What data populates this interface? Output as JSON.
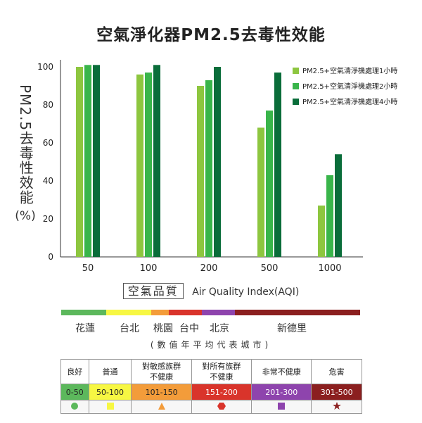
{
  "title": "空氣淨化器PM2.5去毒性效能",
  "colors": {
    "series": [
      "#8dc63f",
      "#39b54a",
      "#0a6d3a"
    ]
  },
  "chart_data": {
    "type": "bar",
    "categories": [
      "50",
      "100",
      "200",
      "500",
      "1000"
    ],
    "series": [
      {
        "name": "PM2.5+空氣清淨機處理1小時",
        "values": [
          100,
          96,
          90,
          68,
          27
        ]
      },
      {
        "name": "PM2.5+空氣清淨機處理2小時",
        "values": [
          101,
          97,
          93,
          77,
          43
        ]
      },
      {
        "name": "PM2.5+空氣清淨機處理4小時",
        "values": [
          101,
          101,
          100,
          97,
          54
        ]
      }
    ],
    "ylim": [
      0,
      100
    ],
    "yticks": [
      "0",
      "20",
      "40",
      "60",
      "80",
      "100"
    ],
    "ylabel_lines": [
      "PM2.5",
      "去",
      "毒",
      "性",
      "效",
      "能"
    ],
    "ylabel_unit": "(%)",
    "xlabel_box": "空氣品質",
    "xlabel": "Air Quality Index(AQI)",
    "legend_position": "top-right"
  },
  "aqi_scale": {
    "segments": [
      {
        "color": "#5cb85c",
        "share": 0.15
      },
      {
        "color": "#f7f743",
        "share": 0.15
      },
      {
        "color": "#f39c3a",
        "share": 0.06
      },
      {
        "color": "#d9342b",
        "share": 0.11
      },
      {
        "color": "#8e44ad",
        "share": 0.11
      },
      {
        "color": "#8b1f1f",
        "share": 0.42
      }
    ],
    "cities": [
      "花蓮",
      "台北",
      "桃園",
      "台中",
      "北京",
      "新德里"
    ],
    "note": "(數值年平均代表城市)"
  },
  "legend_table": {
    "levels": [
      {
        "label": "良好",
        "range": "0-50",
        "color": "#5cb85c",
        "icon": "circle-icon",
        "text_color": "#222"
      },
      {
        "label": "普通",
        "range": "50-100",
        "color": "#f7f743",
        "icon": "square-icon",
        "text_color": "#222"
      },
      {
        "label": "對敏感族群\n不健康",
        "range": "101-150",
        "color": "#f39c3a",
        "icon": "triangle-icon",
        "text_color": "#222"
      },
      {
        "label": "對所有族群\n不健康",
        "range": "151-200",
        "color": "#d9342b",
        "icon": "hexagon-icon",
        "text_color": "#ffffff"
      },
      {
        "label": "非常不健康",
        "range": "201-300",
        "color": "#8e44ad",
        "icon": "square-icon",
        "text_color": "#ffffff"
      },
      {
        "label": "危害",
        "range": "301-500",
        "color": "#8b1f1f",
        "icon": "star-icon",
        "text_color": "#ffffff"
      }
    ]
  }
}
